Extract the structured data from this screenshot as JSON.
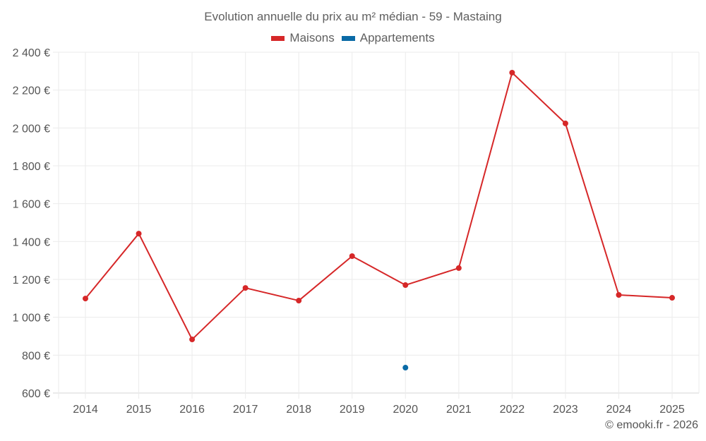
{
  "chart": {
    "title": "Evolution annuelle du prix au m² médian - 59 - Mastaing",
    "credit": "© emooki.fr - 2026",
    "legend": [
      {
        "label": "Maisons",
        "color": "#d62728"
      },
      {
        "label": "Appartements",
        "color": "#0a6aa6"
      }
    ]
  },
  "chart_data": {
    "type": "line",
    "title": "Evolution annuelle du prix au m² médian - 59 - Mastaing",
    "xlabel": "",
    "ylabel": "",
    "categories": [
      "2014",
      "2015",
      "2016",
      "2017",
      "2018",
      "2019",
      "2020",
      "2021",
      "2022",
      "2023",
      "2024",
      "2025"
    ],
    "series": [
      {
        "name": "Maisons",
        "color": "#d62728",
        "values": [
          1099,
          1442,
          883,
          1155,
          1088,
          1323,
          1170,
          1260,
          2292,
          2024,
          1118,
          1103
        ]
      },
      {
        "name": "Appartements",
        "color": "#0a6aa6",
        "values": [
          null,
          null,
          null,
          null,
          null,
          null,
          734,
          null,
          null,
          null,
          null,
          null
        ]
      }
    ],
    "ylim": [
      600,
      2400
    ],
    "yticks": [
      600,
      800,
      1000,
      1200,
      1400,
      1600,
      1800,
      2000,
      2200,
      2400
    ],
    "ytick_labels": [
      "600 €",
      "800 €",
      "1 000 €",
      "1 200 €",
      "1 400 €",
      "1 600 €",
      "1 800 €",
      "2 000 €",
      "2 200 €",
      "2 400 €"
    ],
    "grid": true,
    "legend_position": "top"
  }
}
